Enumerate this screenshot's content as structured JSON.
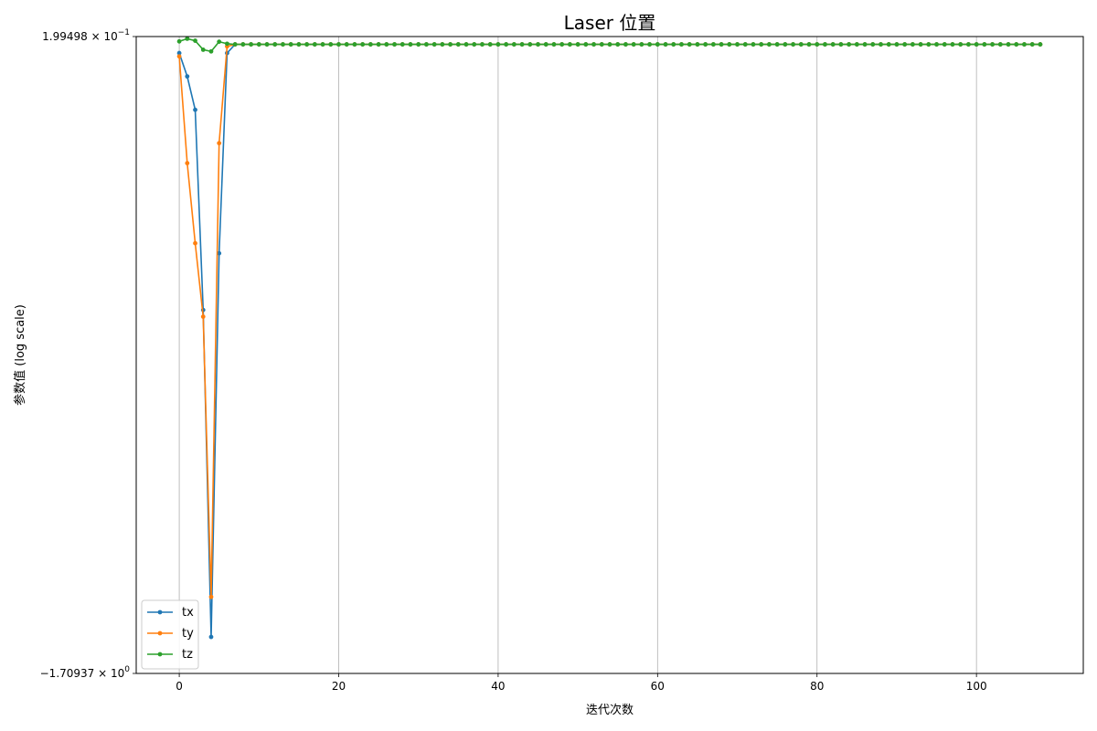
{
  "chart_data": {
    "type": "line",
    "title": "Laser 位置",
    "xlabel": "迭代次数",
    "ylabel": "参数值 (log scale)",
    "yscale": "symlog",
    "xlim": [
      -5.4,
      113.4
    ],
    "xticks": [
      0,
      20,
      40,
      60,
      80,
      100
    ],
    "ylim": [
      -1.70937,
      0.199498
    ],
    "ytick_labels": [
      {
        "value": 0.199498,
        "mantissa": "1.99498",
        "exponent": "−1"
      },
      {
        "value": -1.70937,
        "mantissa": "−1.70937",
        "exponent": "0"
      }
    ],
    "grid": "x-only",
    "legend_position": "lower-left",
    "series": [
      {
        "name": "tx",
        "color": "#1f77b4",
        "head": [
          0.15,
          0.08,
          -0.02,
          -0.62,
          -1.6,
          -0.45,
          0.15
        ],
        "steady_value": 0.176,
        "last_x": 108
      },
      {
        "name": "ty",
        "color": "#ff7f0e",
        "head": [
          0.14,
          -0.18,
          -0.42,
          -0.64,
          -1.48,
          -0.12,
          0.17
        ],
        "steady_value": 0.176,
        "last_x": 108
      },
      {
        "name": "tz",
        "color": "#2ca02c",
        "head": [
          0.185,
          0.193,
          0.187,
          0.16,
          0.155,
          0.184,
          0.178
        ],
        "steady_value": 0.176,
        "last_x": 108
      }
    ]
  }
}
